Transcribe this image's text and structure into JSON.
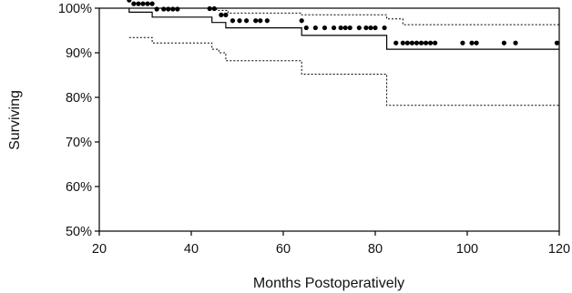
{
  "chart_data": {
    "type": "line",
    "title": "",
    "xlabel": "Months Postoperatively",
    "ylabel": "Surviving",
    "xlim": [
      20,
      120
    ],
    "ylim": [
      50,
      100
    ],
    "x_ticks": [
      20,
      40,
      60,
      80,
      100,
      120
    ],
    "y_ticks": [
      50,
      60,
      70,
      80,
      90,
      100
    ],
    "x_tick_labels": [
      "20",
      "40",
      "60",
      "80",
      "100",
      "120"
    ],
    "y_tick_labels": [
      "50%",
      "60%",
      "70%",
      "80%",
      "90%",
      "100%"
    ],
    "grid": false,
    "legend": "none",
    "series": [
      {
        "role": "survival estimate",
        "style": "solid step",
        "points": [
          [
            26.5,
            100.0
          ],
          [
            26.5,
            99.1
          ],
          [
            31.5,
            99.1
          ],
          [
            31.5,
            98.0
          ],
          [
            44.5,
            98.0
          ],
          [
            44.5,
            96.8
          ],
          [
            47.5,
            96.8
          ],
          [
            47.5,
            95.6
          ],
          [
            64.0,
            95.6
          ],
          [
            64.0,
            93.9
          ],
          [
            82.5,
            93.9
          ],
          [
            82.5,
            90.8
          ],
          [
            120.0,
            90.8
          ]
        ]
      },
      {
        "role": "upper confidence limit",
        "style": "dotted step",
        "points": [
          [
            26.5,
            100.0
          ],
          [
            45.5,
            100.0
          ],
          [
            45.5,
            99.5
          ],
          [
            48.0,
            99.5
          ],
          [
            48.0,
            98.9
          ],
          [
            64.0,
            98.9
          ],
          [
            64.0,
            98.5
          ],
          [
            82.5,
            98.5
          ],
          [
            82.5,
            97.6
          ],
          [
            86.0,
            97.6
          ],
          [
            86.0,
            96.3
          ],
          [
            120.0,
            96.3
          ]
        ]
      },
      {
        "role": "lower confidence limit",
        "style": "dotted step",
        "points": [
          [
            26.5,
            93.4
          ],
          [
            31.5,
            93.4
          ],
          [
            31.5,
            92.2
          ],
          [
            44.5,
            92.2
          ],
          [
            44.5,
            90.8
          ],
          [
            46.0,
            90.8
          ],
          [
            46.0,
            90.0
          ],
          [
            47.5,
            90.0
          ],
          [
            47.5,
            88.2
          ],
          [
            64.0,
            88.2
          ],
          [
            64.0,
            85.2
          ],
          [
            82.5,
            85.2
          ],
          [
            82.5,
            78.2
          ],
          [
            120.0,
            78.2
          ]
        ]
      }
    ],
    "censor_marks": [
      [
        26.5,
        101.8
      ],
      [
        27.5,
        101.0
      ],
      [
        28.5,
        101.0
      ],
      [
        29.5,
        101.0
      ],
      [
        30.5,
        101.0
      ],
      [
        31.5,
        101.0
      ],
      [
        32.5,
        99.8
      ],
      [
        34.0,
        99.8
      ],
      [
        35.0,
        99.8
      ],
      [
        36.0,
        99.8
      ],
      [
        37.0,
        99.8
      ],
      [
        44.0,
        99.9
      ],
      [
        45.0,
        99.9
      ],
      [
        46.5,
        98.5
      ],
      [
        47.5,
        98.5
      ],
      [
        49.0,
        97.2
      ],
      [
        50.5,
        97.2
      ],
      [
        52.0,
        97.2
      ],
      [
        54.0,
        97.2
      ],
      [
        55.0,
        97.2
      ],
      [
        56.5,
        97.2
      ],
      [
        64.0,
        97.2
      ],
      [
        65.0,
        95.6
      ],
      [
        67.0,
        95.6
      ],
      [
        69.0,
        95.6
      ],
      [
        71.0,
        95.6
      ],
      [
        72.5,
        95.6
      ],
      [
        73.5,
        95.6
      ],
      [
        74.5,
        95.6
      ],
      [
        76.5,
        95.6
      ],
      [
        78.0,
        95.6
      ],
      [
        79.0,
        95.6
      ],
      [
        80.0,
        95.6
      ],
      [
        82.0,
        95.6
      ],
      [
        84.5,
        92.2
      ],
      [
        86.0,
        92.2
      ],
      [
        87.0,
        92.2
      ],
      [
        88.0,
        92.2
      ],
      [
        89.0,
        92.2
      ],
      [
        90.0,
        92.2
      ],
      [
        91.0,
        92.2
      ],
      [
        92.0,
        92.2
      ],
      [
        93.0,
        92.2
      ],
      [
        99.0,
        92.2
      ],
      [
        101.0,
        92.2
      ],
      [
        102.0,
        92.2
      ],
      [
        108.0,
        92.2
      ],
      [
        110.5,
        92.2
      ],
      [
        119.5,
        92.2
      ]
    ],
    "colors": {
      "lines": "#000000",
      "axes": "#000000",
      "background": "#ffffff"
    }
  }
}
